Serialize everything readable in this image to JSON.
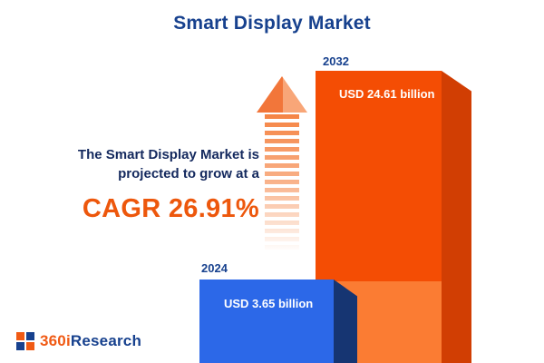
{
  "title": "Smart Display Market",
  "annotation": {
    "line1": "The Smart Display Market is",
    "line2": "projected to grow at a",
    "cagr": "CAGR 26.91%"
  },
  "bars": {
    "y2024": {
      "year": "2024",
      "value_label": "USD 3.65 billion"
    },
    "y2032": {
      "year": "2032",
      "value_label": "USD 24.61 billion"
    }
  },
  "logo": {
    "prefix": "360i",
    "suffix": "Research"
  },
  "icons": {
    "growth_arrow": "up-arrow-icon"
  },
  "colors": {
    "navy": "#17418e",
    "text_navy": "#14295e",
    "accent_orange": "#ed570c",
    "bar_blue": "#2c68e8",
    "bar_blue_side": "#163572",
    "bar_orange": "#f44d04",
    "bar_orange_light": "#fb7c33",
    "bar_orange_side": "#d13e03",
    "arrow_orange": "#f58444"
  },
  "chart_data": {
    "type": "bar",
    "title": "Smart Display Market",
    "categories": [
      "2024",
      "2032"
    ],
    "values": [
      3.65,
      24.61
    ],
    "unit": "USD billion",
    "value_labels": [
      "USD 3.65 billion",
      "USD 24.61 billion"
    ],
    "cagr_percent": 26.91,
    "annotation": "The Smart Display Market is projected to grow at a CAGR 26.91%",
    "legend": false,
    "axes_visible": false,
    "grid": false,
    "bar_colors": [
      "#2c68e8",
      "#f44d04"
    ]
  }
}
